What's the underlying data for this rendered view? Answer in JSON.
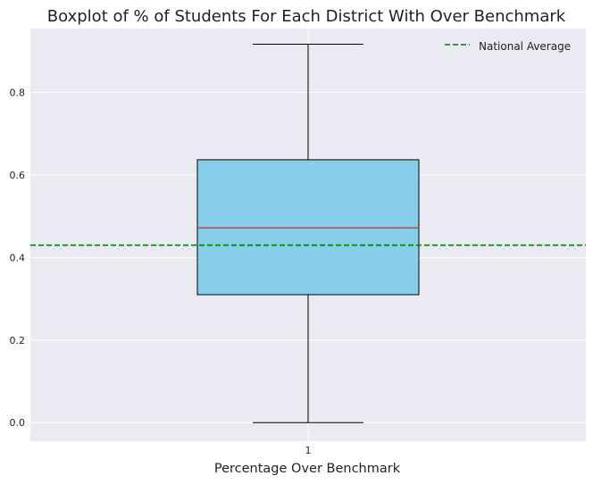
{
  "chart_data": {
    "type": "boxplot",
    "title": "Boxplot of % of Students For Each District With Over Benchmark",
    "xlabel": "Percentage Over Benchmark",
    "ylabel": "",
    "categories": [
      "1"
    ],
    "yticks": [
      "0.0",
      "0.2",
      "0.4",
      "0.6",
      "0.8"
    ],
    "ylim": [
      -0.045,
      0.955
    ],
    "grid": true,
    "legend_position": "top-right",
    "box": {
      "whisker_low": 0.0,
      "q1": 0.31,
      "median": 0.472,
      "q3": 0.637,
      "whisker_high": 0.917
    },
    "reference_line": {
      "name": "National Average",
      "value": 0.43,
      "color": "#008000",
      "style": "dashed"
    },
    "colors": {
      "box_fill": "#87ceeb",
      "box_edge": "#000000",
      "median": "#d62728",
      "plot_background": "#eaeaf2",
      "grid": "#ffffff"
    }
  }
}
